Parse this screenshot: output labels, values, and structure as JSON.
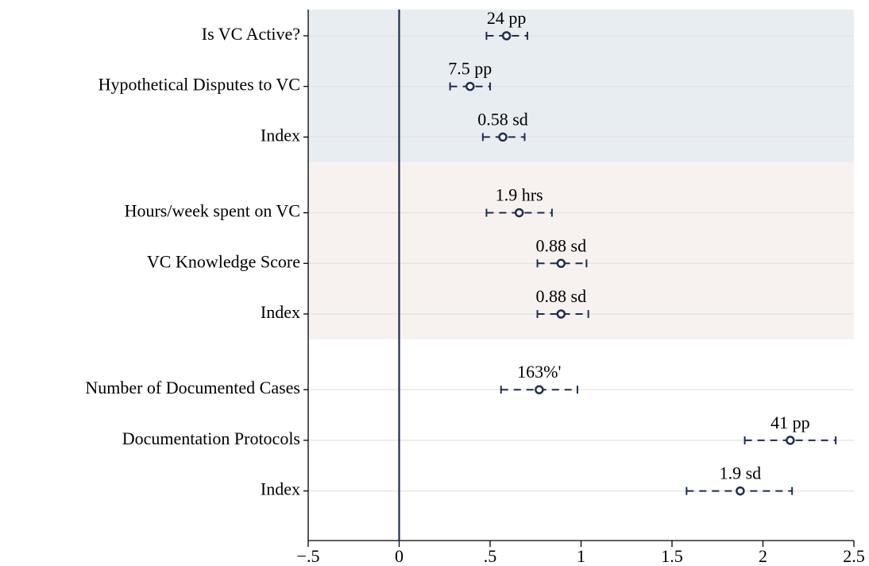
{
  "chart_data": {
    "type": "coefplot",
    "categories": [
      "Is VC Active?",
      "Hypothetical Disputes to VC",
      "Index",
      "Hours/week spent on VC",
      "VC Knowledge Score",
      "Index",
      "Number of Documented Cases",
      "Documentation Protocols",
      "Index"
    ],
    "values": [
      0.59,
      0.39,
      0.57,
      0.66,
      0.89,
      0.89,
      0.77,
      2.15,
      1.875
    ],
    "ci_low": [
      0.48,
      0.28,
      0.46,
      0.48,
      0.76,
      0.76,
      0.56,
      1.9,
      1.58
    ],
    "ci_high": [
      0.705,
      0.5,
      0.69,
      0.84,
      1.03,
      1.04,
      0.98,
      2.4,
      2.16
    ],
    "annotations": [
      "24 pp",
      "7.5 pp",
      "0.58 sd",
      "1.9 hrs",
      "0.88 sd",
      "0.88 sd",
      "163%'",
      "41 pp",
      "1.9 sd"
    ],
    "color": "#1f2d4f",
    "reference_line": 0,
    "xlim": [
      -0.5,
      2.5
    ],
    "xticks": [
      {
        "value": -0.5,
        "label": "−.5"
      },
      0,
      {
        "value": 0.5,
        "label": ".5"
      },
      1,
      1.5,
      2,
      2.5
    ],
    "grid": true
  }
}
